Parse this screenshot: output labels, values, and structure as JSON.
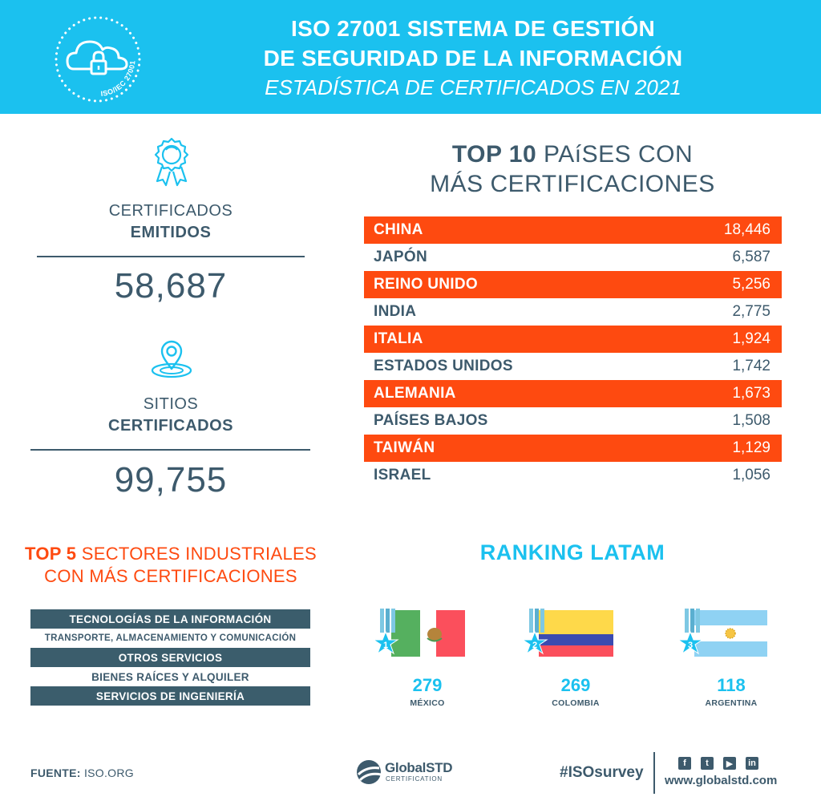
{
  "header": {
    "badge_text": "ISO/IEC 27001",
    "title_line1_bold": "ISO 27001",
    "title_line1_rest": "SISTEMA DE GESTIÓN",
    "title_line2": "DE SEGURIDAD DE LA INFORMACIÓN",
    "subtitle": "ESTADÍSTICA DE CERTIFICADOS EN 2021"
  },
  "stats": {
    "certificates": {
      "label_line1": "CERTIFICADOS",
      "label_line2": "EMITIDOS",
      "value": "58,687",
      "icon": "award-ribbon-icon"
    },
    "sites": {
      "label_line1": "SITIOS",
      "label_line2": "CERTIFICADOS",
      "value": "99,755",
      "icon": "map-pin-icon"
    }
  },
  "top10": {
    "title_bold": "TOP 10",
    "title_rest": "PAíSES CON",
    "title_line2": "MÁS CERTIFICACIONES",
    "rows": [
      {
        "country": "CHINA",
        "value": "18,446"
      },
      {
        "country": "JAPÓN",
        "value": "6,587"
      },
      {
        "country": "REINO UNIDO",
        "value": "5,256"
      },
      {
        "country": "INDIA",
        "value": "2,775"
      },
      {
        "country": "ITALIA",
        "value": "1,924"
      },
      {
        "country": "ESTADOS UNIDOS",
        "value": "1,742"
      },
      {
        "country": "ALEMANIA",
        "value": "1,673"
      },
      {
        "country": "PAÍSES BAJOS",
        "value": "1,508"
      },
      {
        "country": "TAIWÁN",
        "value": "1,129"
      },
      {
        "country": "ISRAEL",
        "value": "1,056"
      }
    ]
  },
  "sectors": {
    "title_bold": "TOP 5",
    "title_rest": "SECTORES INDUSTRIALES",
    "title_line2": "CON MÁS CERTIFICACIONES",
    "items": [
      "TECNOLOGÍAS DE LA INFORMACIÓN",
      "TRANSPORTE, ALMACENAMIENTO Y COMUNICACIÓN",
      "OTROS SERVICIOS",
      "BIENES RAÍCES Y ALQUILER",
      "SERVICIOS DE INGENIERÍA"
    ]
  },
  "latam": {
    "title": "RANKING LATAM",
    "items": [
      {
        "rank": "1",
        "value": "279",
        "country": "MÉXICO"
      },
      {
        "rank": "2",
        "value": "269",
        "country": "COLOMBIA"
      },
      {
        "rank": "3",
        "value": "118",
        "country": "ARGENTINA"
      }
    ]
  },
  "footer": {
    "source_label": "FUENTE:",
    "source_value": "ISO.ORG",
    "logo_name_a": "Global",
    "logo_name_b": "STD",
    "logo_sub": "CERTIFICATION",
    "hashtag": "#ISOsurvey",
    "website": "www.globalstd.com",
    "social_icons": [
      "facebook-icon",
      "twitter-icon",
      "youtube-icon",
      "linkedin-icon"
    ]
  },
  "colors": {
    "header_bg": "#1bc1ef",
    "accent_orange": "#fe4a10",
    "dark_slate": "#3d5a6c",
    "white": "#ffffff"
  }
}
